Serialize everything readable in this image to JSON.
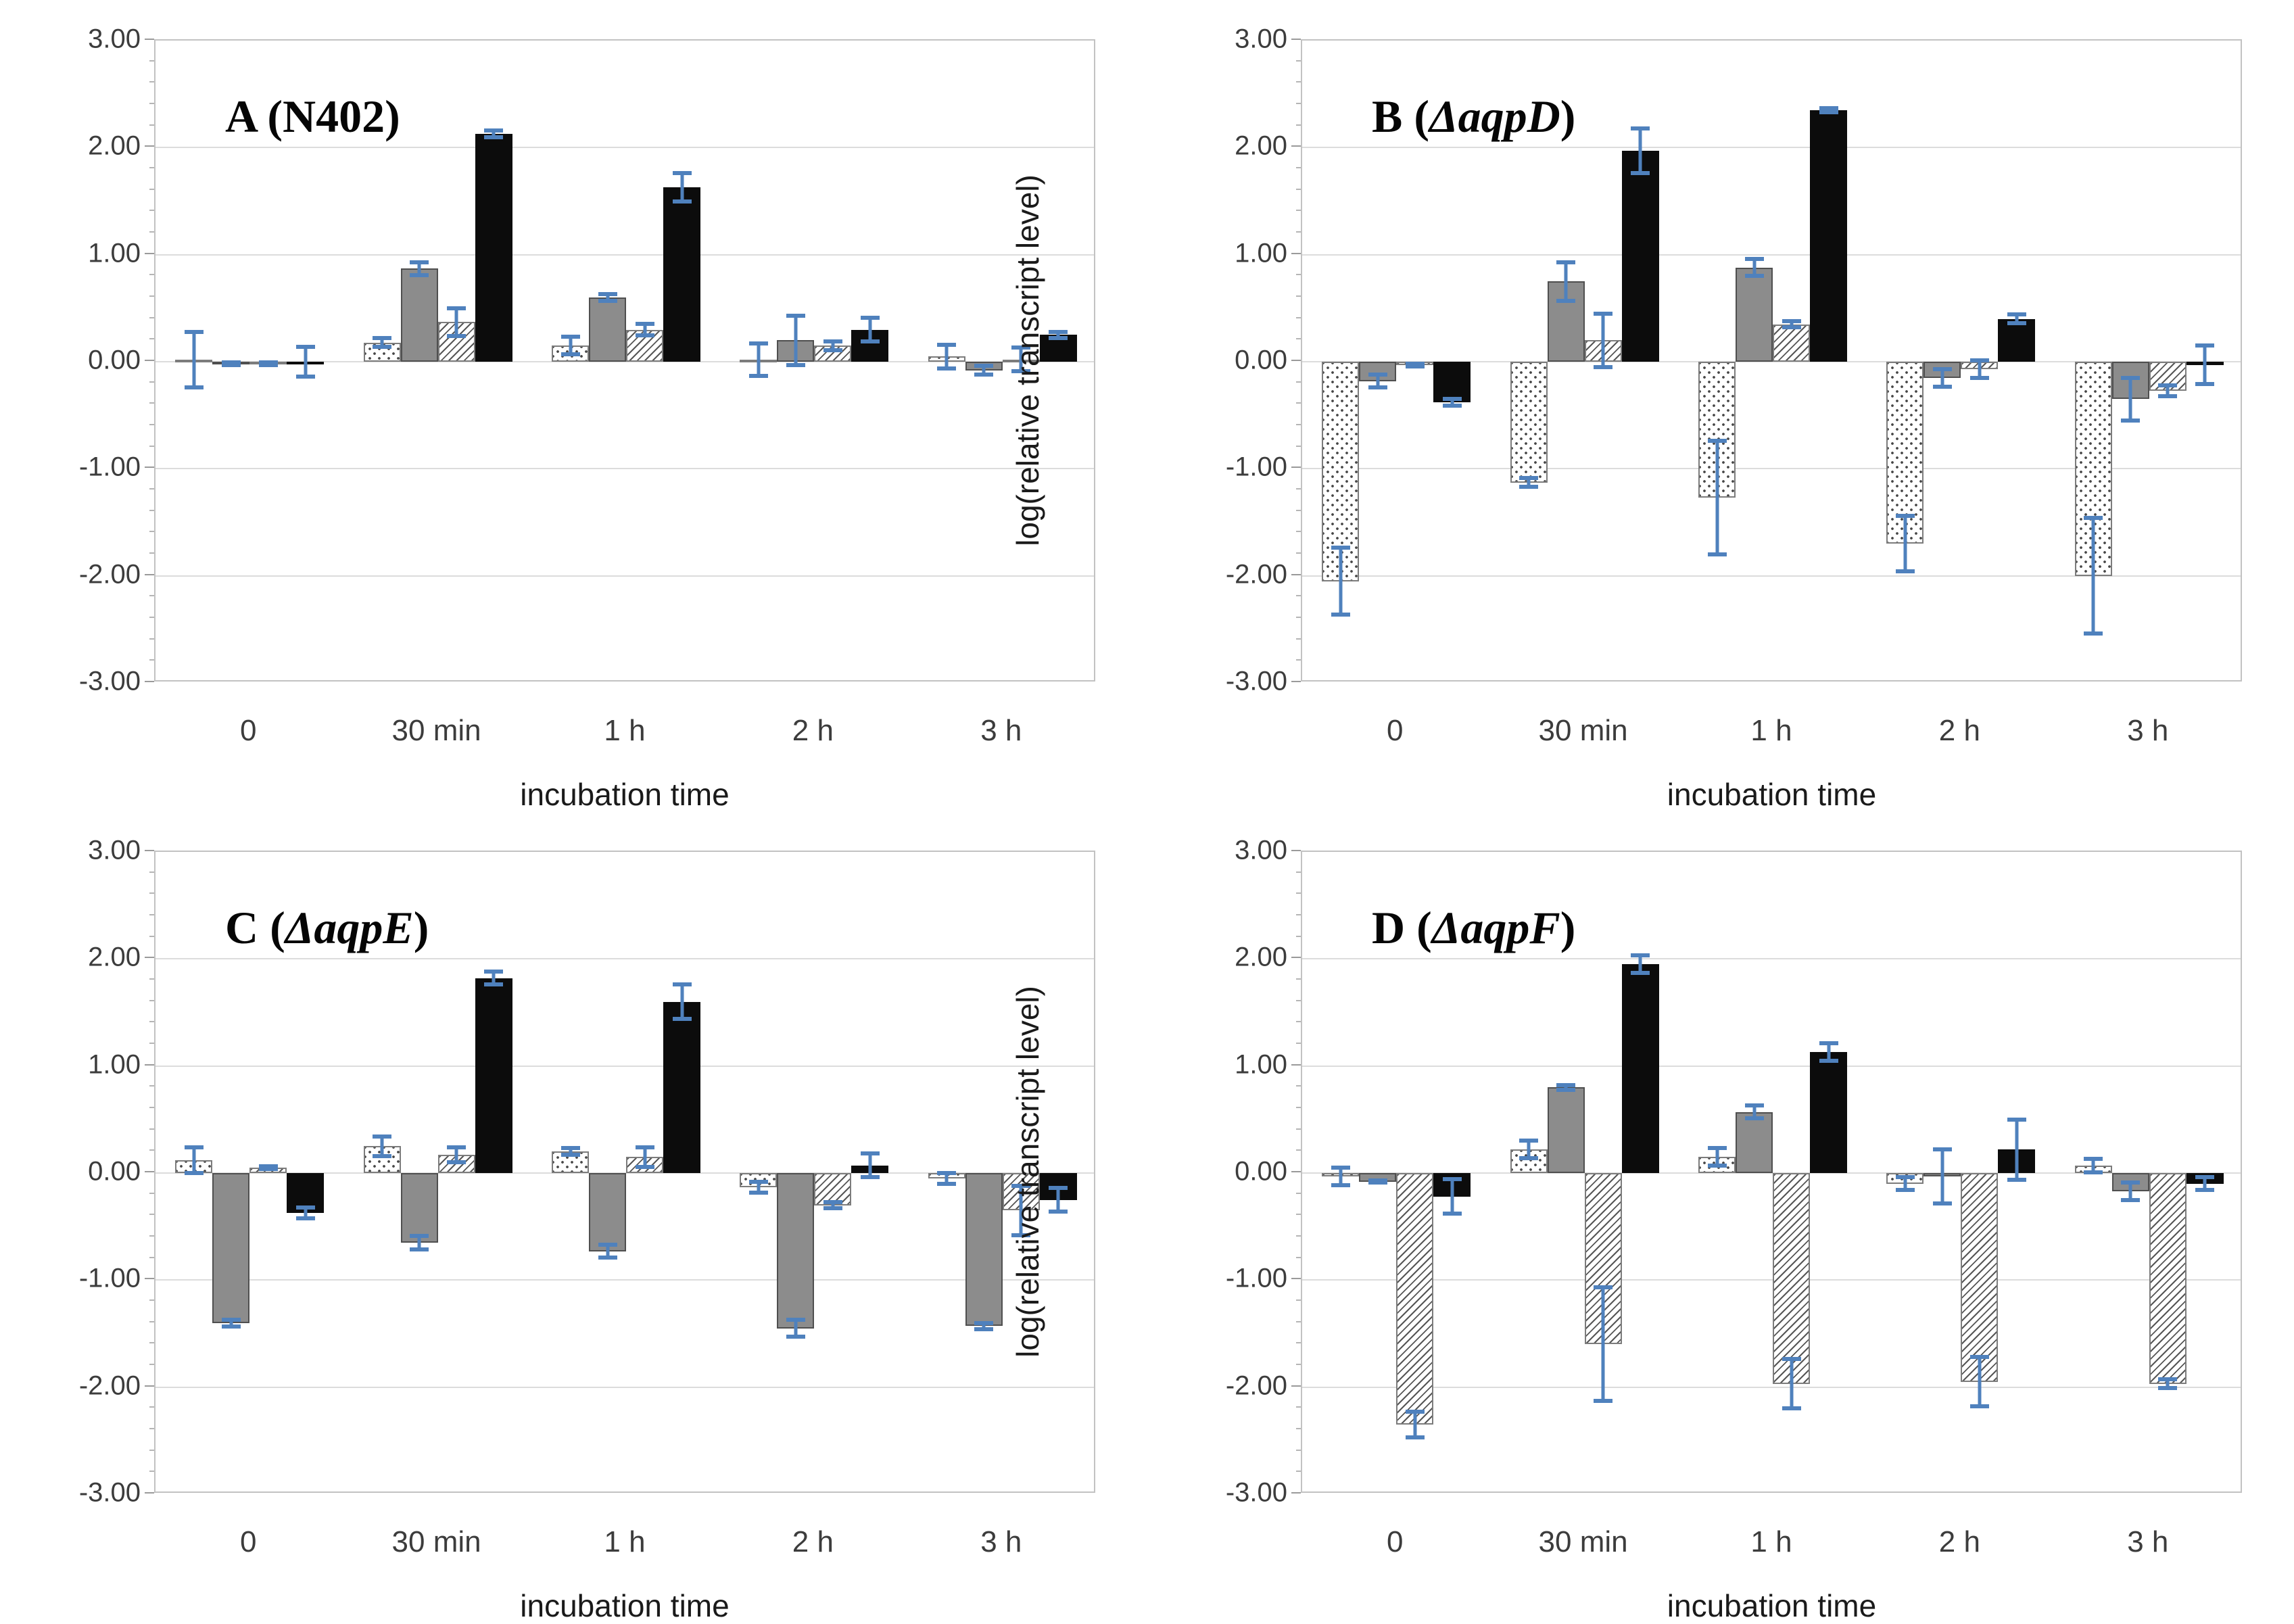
{
  "figure": {
    "y_axis_label": "log(relative transcript level)",
    "x_axis_label": "incubation time",
    "y_tick_labels": [
      "3.00",
      "2.00",
      "1.00",
      "0.00",
      "-1.00",
      "-2.00",
      "-3.00"
    ],
    "ylim": [
      -3,
      3
    ],
    "y_major_step": 1.0,
    "y_minor_step": 0.2,
    "grid": "horizontal-major",
    "legend": "none",
    "error_bar_color": "#4f81bd",
    "bar_colors": {
      "dotted": "#ffffff",
      "gray": "#8c8c8c",
      "hatched": "#ffffff",
      "black": "#0c0c0c"
    }
  },
  "chart_data": [
    {
      "type": "bar",
      "panel_letter": "A",
      "strain": "N402",
      "strain_italic": false,
      "title_text": "A (N402)",
      "xlabel": "incubation time",
      "ylabel": "log(relative transcript level)",
      "ylim": [
        -3,
        3
      ],
      "categories": [
        "0",
        "30 min",
        "1 h",
        "2 h",
        "3 h"
      ],
      "series": [
        {
          "name": "dotted-pattern",
          "values": [
            0.02,
            0.18,
            0.15,
            0.02,
            0.05
          ],
          "errors": [
            0.28,
            0.06,
            0.1,
            0.17,
            0.13
          ]
        },
        {
          "name": "gray-solid",
          "values": [
            -0.02,
            0.87,
            0.6,
            0.2,
            -0.08
          ],
          "errors": [
            0.03,
            0.08,
            0.05,
            0.25,
            0.06
          ]
        },
        {
          "name": "hatched-pattern",
          "values": [
            -0.02,
            0.37,
            0.3,
            0.15,
            0.02
          ],
          "errors": [
            0.03,
            0.15,
            0.07,
            0.06,
            0.13
          ]
        },
        {
          "name": "black-solid",
          "values": [
            0.0,
            2.13,
            1.63,
            0.3,
            0.25
          ],
          "errors": [
            0.16,
            0.05,
            0.15,
            0.13,
            0.05
          ]
        }
      ]
    },
    {
      "type": "bar",
      "panel_letter": "B",
      "strain": "ΔaqpD",
      "strain_italic": true,
      "title_text": "B (ΔaqpD)",
      "xlabel": "incubation time",
      "ylabel": "log(relative transcript level)",
      "ylim": [
        -3,
        3
      ],
      "categories": [
        "0",
        "30 min",
        "1 h",
        "2 h",
        "3 h"
      ],
      "series": [
        {
          "name": "dotted-pattern",
          "values": [
            -2.05,
            -1.13,
            -1.27,
            -1.7,
            -2.0
          ],
          "errors": [
            0.33,
            0.06,
            0.55,
            0.28,
            0.56
          ]
        },
        {
          "name": "gray-solid",
          "values": [
            -0.18,
            0.75,
            0.88,
            -0.15,
            -0.35
          ],
          "errors": [
            0.08,
            0.2,
            0.1,
            0.1,
            0.22
          ]
        },
        {
          "name": "hatched-pattern",
          "values": [
            -0.03,
            0.2,
            0.35,
            -0.07,
            -0.27
          ],
          "errors": [
            0.03,
            0.27,
            0.05,
            0.1,
            0.07
          ]
        },
        {
          "name": "black-solid",
          "values": [
            -0.38,
            1.97,
            2.35,
            0.4,
            -0.03
          ],
          "errors": [
            0.05,
            0.23,
            0.04,
            0.06,
            0.2
          ]
        }
      ]
    },
    {
      "type": "bar",
      "panel_letter": "C",
      "strain": "ΔaqpE",
      "strain_italic": true,
      "title_text": "C (ΔaqpE)",
      "xlabel": "incubation time",
      "ylabel": "log(relative transcript level)",
      "ylim": [
        -3,
        3
      ],
      "categories": [
        "0",
        "30 min",
        "1 h",
        "2 h",
        "3 h"
      ],
      "series": [
        {
          "name": "dotted-pattern",
          "values": [
            0.12,
            0.25,
            0.2,
            -0.13,
            -0.05
          ],
          "errors": [
            0.14,
            0.11,
            0.05,
            0.07,
            0.07
          ]
        },
        {
          "name": "gray-solid",
          "values": [
            -1.4,
            -0.65,
            -0.73,
            -1.45,
            -1.43
          ],
          "errors": [
            0.05,
            0.08,
            0.08,
            0.1,
            0.05
          ]
        },
        {
          "name": "hatched-pattern",
          "values": [
            0.05,
            0.17,
            0.15,
            -0.3,
            -0.35
          ],
          "errors": [
            0.03,
            0.09,
            0.11,
            0.05,
            0.25
          ]
        },
        {
          "name": "black-solid",
          "values": [
            -0.37,
            1.82,
            1.6,
            0.07,
            -0.25
          ],
          "errors": [
            0.07,
            0.08,
            0.18,
            0.13,
            0.13
          ]
        }
      ]
    },
    {
      "type": "bar",
      "panel_letter": "D",
      "strain": "ΔaqpF",
      "strain_italic": true,
      "title_text": "D (ΔaqpF)",
      "xlabel": "incubation time",
      "ylabel": "log(relative transcript level)",
      "ylim": [
        -3,
        3
      ],
      "categories": [
        "0",
        "30 min",
        "1 h",
        "2 h",
        "3 h"
      ],
      "series": [
        {
          "name": "dotted-pattern",
          "values": [
            -0.03,
            0.22,
            0.15,
            -0.1,
            0.07
          ],
          "errors": [
            0.1,
            0.1,
            0.1,
            0.08,
            0.08
          ]
        },
        {
          "name": "gray-solid",
          "values": [
            -0.08,
            0.8,
            0.57,
            -0.03,
            -0.17
          ],
          "errors": [
            0.03,
            0.04,
            0.08,
            0.27,
            0.1
          ]
        },
        {
          "name": "hatched-pattern",
          "values": [
            -2.35,
            -1.6,
            -1.97,
            -1.95,
            -1.97
          ],
          "errors": [
            0.14,
            0.55,
            0.25,
            0.25,
            0.06
          ]
        },
        {
          "name": "black-solid",
          "values": [
            -0.22,
            1.95,
            1.13,
            0.22,
            -0.1
          ],
          "errors": [
            0.18,
            0.1,
            0.1,
            0.3,
            0.08
          ]
        }
      ]
    }
  ]
}
